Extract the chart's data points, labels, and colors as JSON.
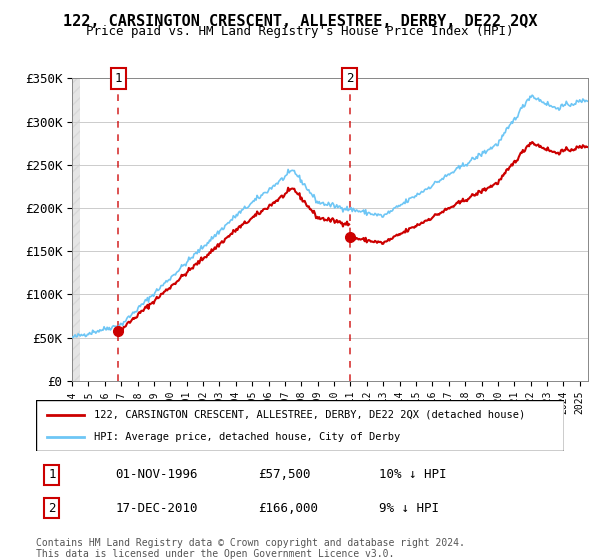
{
  "title": "122, CARSINGTON CRESCENT, ALLESTREE, DERBY, DE22 2QX",
  "subtitle": "Price paid vs. HM Land Registry's House Price Index (HPI)",
  "ylabel_ticks": [
    "£0",
    "£50K",
    "£100K",
    "£150K",
    "£200K",
    "£250K",
    "£300K",
    "£350K"
  ],
  "ylim": [
    0,
    350000
  ],
  "xlim_start": 1994.0,
  "xlim_end": 2025.5,
  "sale1_date": 1996.833,
  "sale1_price": 57500,
  "sale1_label": "1",
  "sale2_date": 2010.958,
  "sale2_price": 166000,
  "sale2_label": "2",
  "hpi_color": "#6ec6f5",
  "price_color": "#cc0000",
  "dashed_color": "#cc0000",
  "legend_line1": "122, CARSINGTON CRESCENT, ALLESTREE, DERBY, DE22 2QX (detached house)",
  "legend_line2": "HPI: Average price, detached house, City of Derby",
  "table_row1": [
    "1",
    "01-NOV-1996",
    "£57,500",
    "10% ↓ HPI"
  ],
  "table_row2": [
    "2",
    "17-DEC-2010",
    "£166,000",
    "9% ↓ HPI"
  ],
  "footer": "Contains HM Land Registry data © Crown copyright and database right 2024.\nThis data is licensed under the Open Government Licence v3.0.",
  "background_color": "#f5f5f5"
}
